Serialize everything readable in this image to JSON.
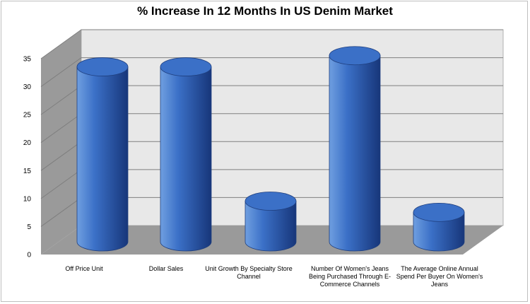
{
  "chart_data": {
    "type": "bar",
    "title": "% Increase In 12 Months In US Denim Market",
    "categories": [
      "Off Price Unit",
      "Dollar Sales",
      "Unit Growth By Specialty Store Channel",
      "Number Of Women's Jeans Being Purchased Through E-Commerce Channels",
      "The Average Online Annual Spend Per Buyer On Women's Jeans"
    ],
    "values": [
      30,
      30,
      6,
      32,
      4
    ],
    "ylim": [
      0,
      35
    ],
    "yticks": [
      "0",
      "5",
      "10",
      "15",
      "20",
      "25",
      "30",
      "35"
    ],
    "grid": true,
    "legend": "none",
    "colors": {
      "bar_light": "#6f9fe0",
      "bar_mid": "#3b70c7",
      "bar_dark": "#17367a",
      "wall": "#e8e8e8",
      "side_wall": "#9a9a9a",
      "floor": "#9a9a9a"
    }
  }
}
